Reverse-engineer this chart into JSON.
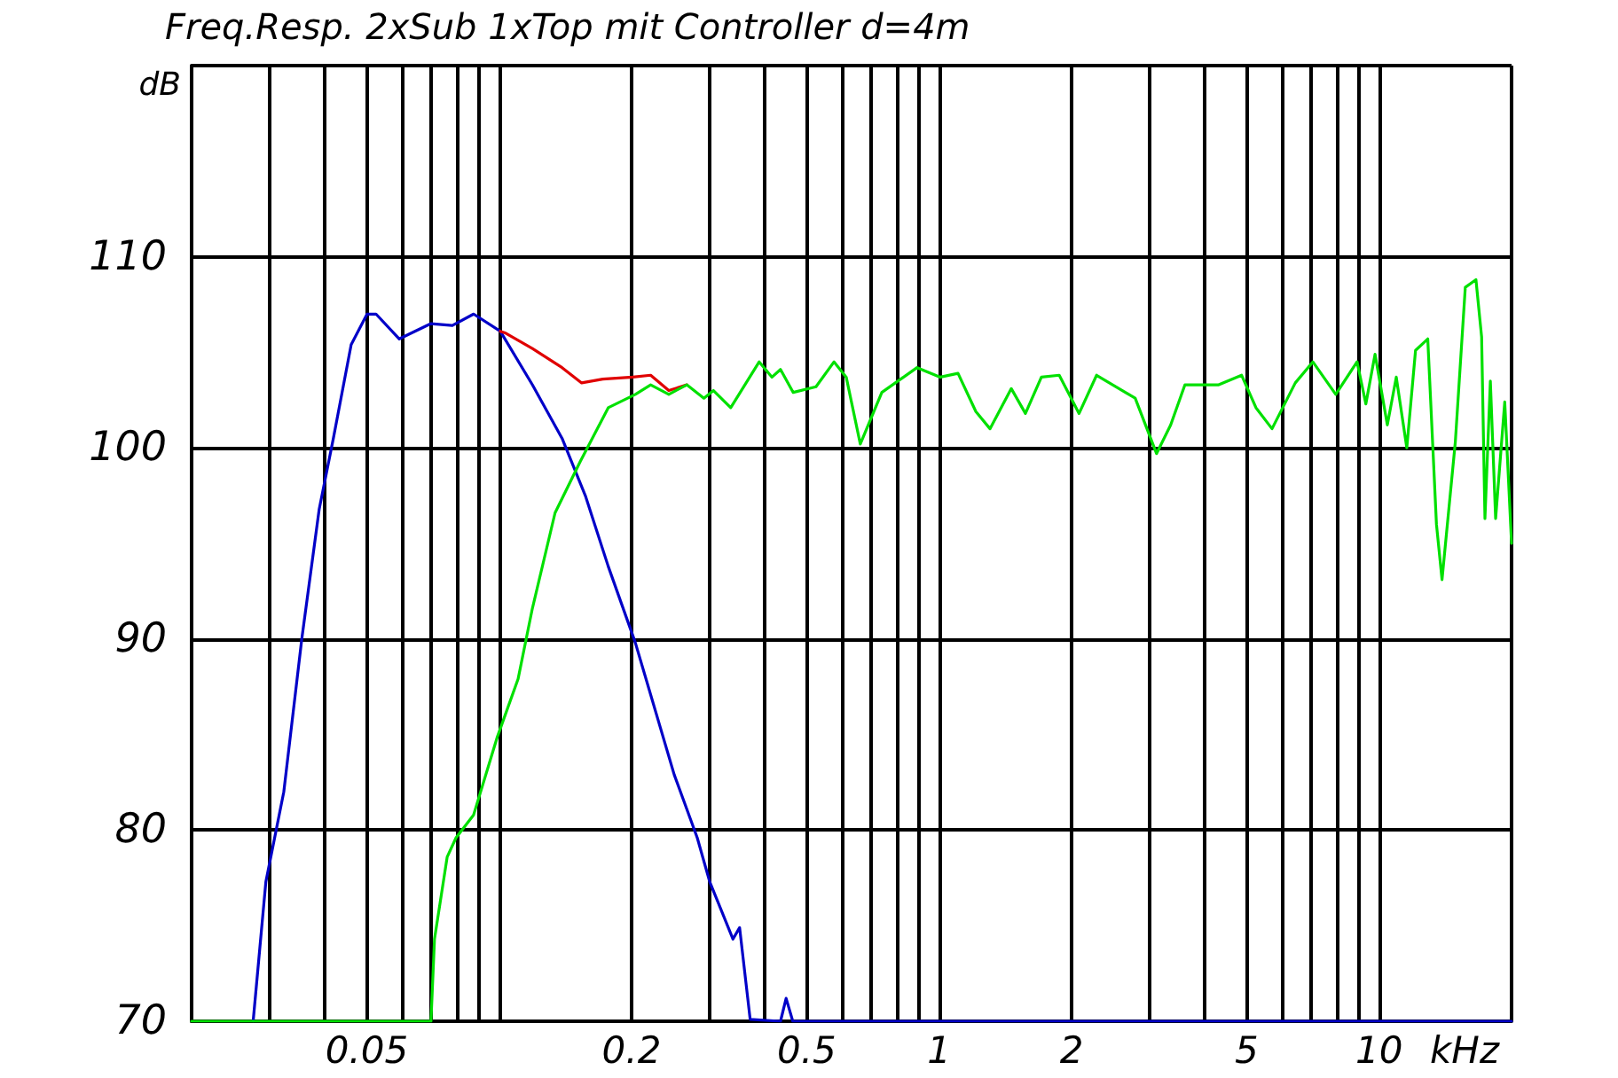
{
  "chart_data": {
    "type": "line",
    "title": "Freq.Resp. 2xSub 1xTop mit Controller d=4m",
    "xlabel": "kHz",
    "ylabel": "dB",
    "log": "x",
    "grid": true,
    "marker": "none",
    "line_style": "solid",
    "xlim": [
      0.02,
      20
    ],
    "ylim": [
      70,
      120
    ],
    "xticks": [
      {
        "value": 0.02,
        "label": null
      },
      {
        "value": 0.03,
        "label": null
      },
      {
        "value": 0.04,
        "label": null
      },
      {
        "value": 0.05,
        "label": "0.05"
      },
      {
        "value": 0.06,
        "label": null
      },
      {
        "value": 0.07,
        "label": null
      },
      {
        "value": 0.08,
        "label": null
      },
      {
        "value": 0.09,
        "label": null
      },
      {
        "value": 0.1,
        "label": null
      },
      {
        "value": 0.2,
        "label": "0.2"
      },
      {
        "value": 0.3,
        "label": null
      },
      {
        "value": 0.4,
        "label": null
      },
      {
        "value": 0.5,
        "label": "0.5"
      },
      {
        "value": 0.6,
        "label": null
      },
      {
        "value": 0.7,
        "label": null
      },
      {
        "value": 0.8,
        "label": null
      },
      {
        "value": 0.9,
        "label": null
      },
      1,
      2,
      {
        "value": 3,
        "label": null
      },
      {
        "value": 4,
        "label": null
      },
      5,
      {
        "value": 6,
        "label": null
      },
      {
        "value": 7,
        "label": null
      },
      {
        "value": 8,
        "label": null
      },
      {
        "value": 9,
        "label": null
      },
      10,
      {
        "value": 20,
        "label": null
      }
    ],
    "yticks": [
      70,
      80,
      90,
      100,
      110,
      {
        "value": 120,
        "label": null
      }
    ],
    "series": [
      {
        "color": "#0000c8",
        "x": [
          0.0276,
          0.0295,
          0.0324,
          0.0356,
          0.039,
          0.042,
          0.0461,
          0.0501,
          0.0525,
          0.0593,
          0.07,
          0.0783,
          0.0875,
          0.1006,
          0.119,
          0.139,
          0.157,
          0.177,
          0.204,
          0.25,
          0.282,
          0.301,
          0.34,
          0.352,
          0.372,
          0.436,
          0.449,
          0.465,
          20
        ],
        "values": [
          70,
          77.3,
          82,
          90,
          96.8,
          100.5,
          105.4,
          107,
          107,
          105.7,
          106.5,
          106.4,
          107,
          106.1,
          103.3,
          100.5,
          97.5,
          93.8,
          89.8,
          82.9,
          79.6,
          77.3,
          74.3,
          74.9,
          70.1,
          70,
          71.2,
          70,
          70
        ]
      },
      {
        "color": "#e00000",
        "x": [
          0.1006,
          0.1035,
          0.119,
          0.139,
          0.154,
          0.172,
          0.201,
          0.221,
          0.243,
          0.267
        ],
        "values": [
          106.1,
          106,
          105.2,
          104.2,
          103.4,
          103.6,
          103.7,
          103.8,
          103,
          103.3
        ]
      },
      {
        "color": "#00e000",
        "x": [
          0.02,
          0.07,
          0.0713,
          0.0762,
          0.0798,
          0.0875,
          0.0988,
          0.1104,
          0.119,
          0.134,
          0.153,
          0.177,
          0.204,
          0.221,
          0.243,
          0.267,
          0.292,
          0.307,
          0.336,
          0.39,
          0.417,
          0.436,
          0.466,
          0.525,
          0.577,
          0.615,
          0.662,
          0.741,
          0.891,
          1.006,
          1.104,
          1.212,
          1.305,
          1.459,
          1.571,
          1.708,
          1.875,
          2.08,
          2.28,
          2.79,
          3.12,
          3.36,
          3.62,
          4.32,
          4.87,
          5.25,
          5.71,
          6.45,
          7.07,
          7.97,
          8.91,
          9.33,
          9.79,
          10.44,
          10.94,
          11.56,
          12.1,
          12.9,
          13.5,
          13.9,
          14.9,
          15.7,
          16.6,
          17.1,
          17.4,
          17.9,
          18.4,
          19.3,
          20
        ],
        "values": [
          70,
          70,
          74.3,
          78.6,
          79.6,
          80.8,
          84.8,
          87.9,
          91.6,
          96.6,
          99.3,
          102.1,
          102.8,
          103.3,
          102.8,
          103.3,
          102.6,
          103,
          102.1,
          104.5,
          103.7,
          104.1,
          102.9,
          103.2,
          104.5,
          103.7,
          100.2,
          102.9,
          104.2,
          103.7,
          103.9,
          101.9,
          101,
          103.1,
          101.8,
          103.7,
          103.8,
          101.8,
          103.8,
          102.6,
          99.7,
          101.2,
          103.3,
          103.3,
          103.8,
          102.1,
          101,
          103.4,
          104.5,
          102.8,
          104.5,
          102.3,
          104.9,
          101.2,
          103.7,
          100,
          105.1,
          105.7,
          96,
          93.1,
          100.3,
          108.4,
          108.8,
          105.8,
          96.3,
          103.5,
          96.3,
          102.4,
          95
        ]
      }
    ]
  }
}
